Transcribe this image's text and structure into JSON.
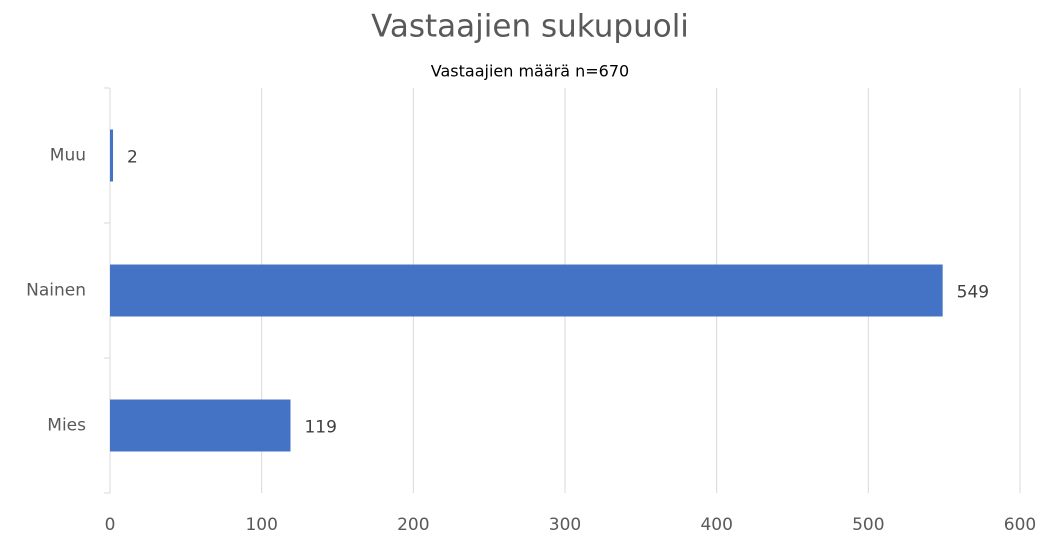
{
  "chart_data": {
    "type": "bar",
    "orientation": "horizontal",
    "title": "Vastaajien sukupuoli",
    "subtitle": "Vastaajien määrä n=670",
    "categories": [
      "Mies",
      "Nainen",
      "Muu"
    ],
    "values": [
      119,
      549,
      2
    ],
    "color": "#4472c4",
    "xlim": [
      0,
      600
    ],
    "xticks": [
      0,
      100,
      200,
      300,
      400,
      500,
      600
    ],
    "grid": true
  }
}
